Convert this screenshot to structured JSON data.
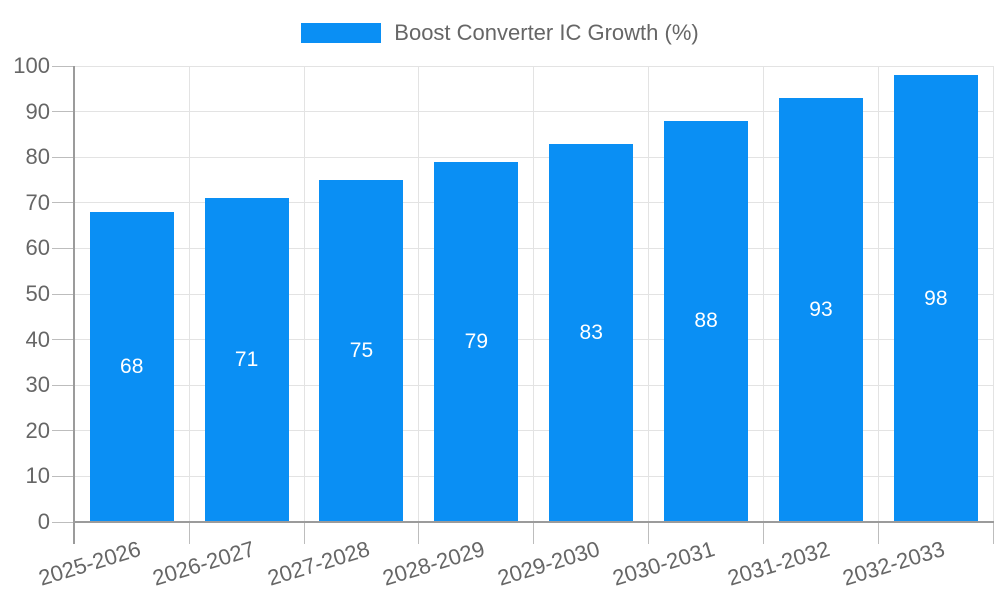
{
  "colors": {
    "bar": "#0a8ff4",
    "bar_label": "#ffffff",
    "grid": "#e3e3e3",
    "tick": "#bdbdbd",
    "axis": "#9b9b9b",
    "label_text": "#666666",
    "background": "#ffffff"
  },
  "chart_data": {
    "type": "bar",
    "title": "Boost Converter IC Growth (%)",
    "categories": [
      "2025-2026",
      "2026-2027",
      "2027-2028",
      "2028-2029",
      "2029-2030",
      "2030-2031",
      "2031-2032",
      "2032-2033"
    ],
    "values": [
      68,
      71,
      75,
      79,
      83,
      88,
      93,
      98
    ],
    "xlabel": "",
    "ylabel": "",
    "ylim": [
      0,
      100
    ],
    "yticks": [
      0,
      10,
      20,
      30,
      40,
      50,
      60,
      70,
      80,
      90,
      100
    ],
    "grid": true,
    "show_bar_values": true,
    "legend": {
      "position": "top",
      "entries": [
        "Boost Converter IC Growth (%)"
      ]
    },
    "x_tick_rotation_deg": -17
  }
}
